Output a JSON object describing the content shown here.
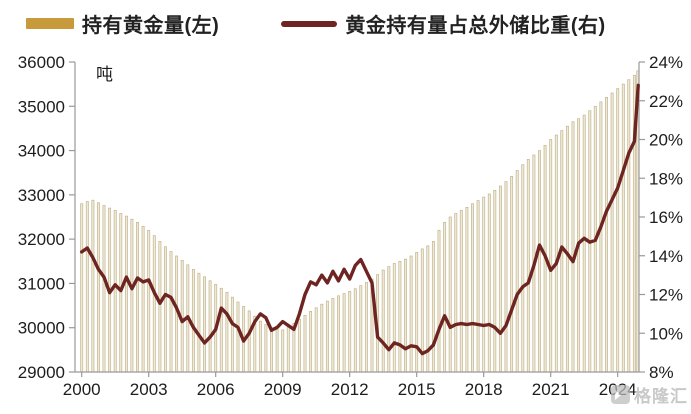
{
  "legend": {
    "bars_label": "持有黄金量(左)",
    "line_label": "黄金持有量占总外储比重(右)"
  },
  "watermark_text": "格隆汇",
  "colors": {
    "legend_bar": "#C79A3C",
    "line": "#6E2420",
    "bar_fill": "#EFE9D6",
    "bar_edge": "#C2B58E",
    "axis": "#999999",
    "text": "#1D1D1D",
    "watermark": "#B5B5B5"
  },
  "chart_data": {
    "type": "bar+line combo",
    "grid": "off",
    "legend_position": "top",
    "left_axis": {
      "unit_label": "吨",
      "min": 29000,
      "max": 36000,
      "ticks": [
        36000,
        35000,
        34000,
        33000,
        32000,
        31000,
        30000,
        29000
      ]
    },
    "right_axis": {
      "suffix": "%",
      "min": 8,
      "max": 24,
      "ticks": [
        24,
        22,
        20,
        18,
        16,
        14,
        12,
        10,
        8
      ]
    },
    "x_axis": {
      "tick_years": [
        2000,
        2003,
        2006,
        2009,
        2012,
        2015,
        2018,
        2021,
        2024
      ],
      "domain": [
        1999.7,
        2025.0
      ]
    },
    "series": [
      {
        "name": "持有黄金量(左)",
        "type": "bar",
        "axis": "left",
        "x_start": 2000.0,
        "x_step": 0.25,
        "values": [
          32800,
          32850,
          32880,
          32820,
          32760,
          32700,
          32650,
          32580,
          32520,
          32450,
          32380,
          32290,
          32200,
          32080,
          31950,
          31830,
          31720,
          31620,
          31520,
          31420,
          31320,
          31230,
          31150,
          31060,
          30980,
          30890,
          30800,
          30690,
          30580,
          30480,
          30380,
          30260,
          30150,
          30070,
          30000,
          29960,
          29950,
          30020,
          30100,
          30190,
          30280,
          30370,
          30450,
          30530,
          30600,
          30660,
          30720,
          30770,
          30820,
          30880,
          30950,
          31020,
          31100,
          31200,
          31300,
          31380,
          31450,
          31500,
          31550,
          31620,
          31700,
          31780,
          31850,
          31950,
          32200,
          32380,
          32500,
          32580,
          32650,
          32720,
          32800,
          32870,
          32950,
          33020,
          33100,
          33200,
          33300,
          33420,
          33550,
          33680,
          33800,
          33900,
          34000,
          34120,
          34250,
          34350,
          34450,
          34550,
          34650,
          34720,
          34800,
          34900,
          35000,
          35100,
          35200,
          35300,
          35400,
          35500,
          35600,
          35700,
          35800
        ]
      },
      {
        "name": "黄金持有量占总外储比重(右)",
        "type": "line",
        "axis": "right",
        "x_start": 2000.0,
        "x_step": 0.25,
        "values": [
          14.2,
          14.4,
          13.9,
          13.3,
          12.9,
          12.1,
          12.5,
          12.2,
          12.9,
          12.3,
          12.85,
          12.65,
          12.75,
          12.1,
          11.55,
          12.0,
          11.85,
          11.3,
          10.6,
          10.85,
          10.3,
          9.9,
          9.5,
          9.8,
          10.2,
          11.3,
          11.0,
          10.5,
          10.3,
          9.6,
          10.0,
          10.6,
          11.0,
          10.8,
          10.15,
          10.3,
          10.6,
          10.4,
          10.2,
          11.0,
          12.0,
          12.65,
          12.5,
          13.0,
          12.6,
          13.2,
          12.7,
          13.3,
          12.8,
          13.5,
          13.8,
          13.2,
          12.6,
          9.8,
          9.5,
          9.15,
          9.5,
          9.4,
          9.2,
          9.35,
          9.3,
          8.95,
          9.1,
          9.4,
          10.2,
          10.9,
          10.3,
          10.45,
          10.5,
          10.45,
          10.5,
          10.45,
          10.4,
          10.45,
          10.3,
          10.0,
          10.4,
          11.2,
          12.0,
          12.4,
          12.6,
          13.5,
          14.55,
          14.0,
          13.25,
          13.6,
          14.45,
          14.1,
          13.7,
          14.65,
          14.9,
          14.7,
          14.8,
          15.5,
          16.3,
          16.9,
          17.5,
          18.4,
          19.3,
          19.9,
          22.8
        ]
      }
    ]
  }
}
